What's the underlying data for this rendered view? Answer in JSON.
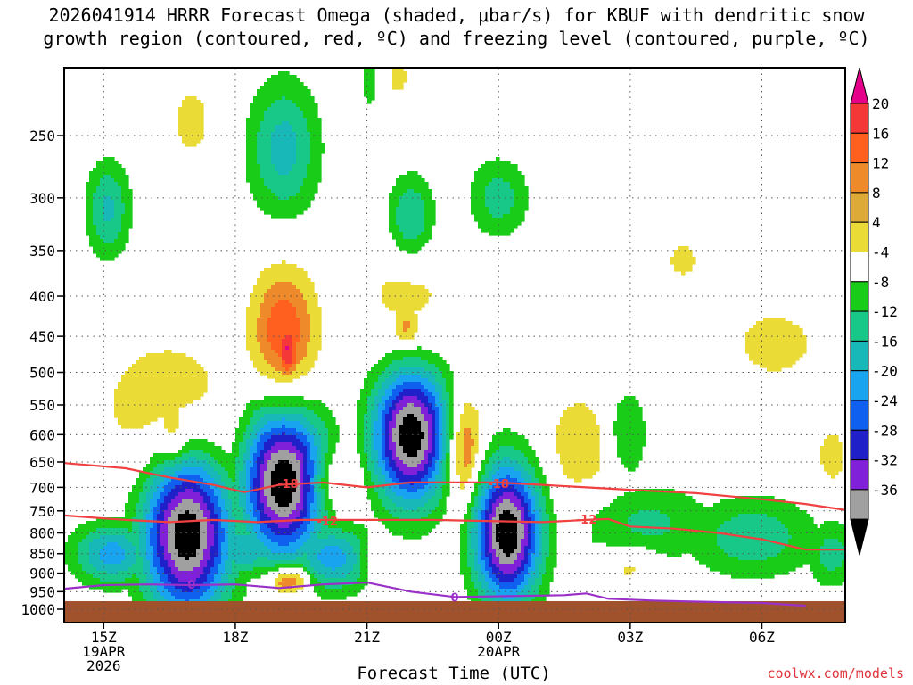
{
  "title_line1": "2026041914 HRRR Forecast Omega (shaded, μbar/s) for KBUF with dendritic snow",
  "title_line2": "growth region (contoured, red, ºC) and freezing level (contoured, purple, ºC)",
  "credit": "coolwx.com/models",
  "chart_data": {
    "type": "heatmap",
    "title": "2026041914 HRRR Forecast Omega (shaded, μbar/s) for KBUF with dendritic snow growth region (contoured, red, ºC) and freezing level (contoured, purple, ºC)",
    "xlabel": "Forecast Time (UTC)",
    "ylabel": "",
    "y_scale": "log-pressure (hPa), inverted",
    "y_ticks": [
      250,
      300,
      350,
      400,
      450,
      500,
      550,
      600,
      650,
      700,
      750,
      800,
      850,
      900,
      950,
      1000
    ],
    "x_ticks": [
      {
        "hour": 15,
        "label": "15Z",
        "sub1": "19APR",
        "sub2": "2026"
      },
      {
        "hour": 18,
        "label": "18Z",
        "sub1": "",
        "sub2": ""
      },
      {
        "hour": 21,
        "label": "21Z",
        "sub1": "",
        "sub2": ""
      },
      {
        "hour": 24,
        "label": "00Z",
        "sub1": "20APR",
        "sub2": ""
      },
      {
        "hour": 27,
        "label": "03Z",
        "sub1": "",
        "sub2": ""
      },
      {
        "hour": 30,
        "label": "06Z",
        "sub1": "",
        "sub2": ""
      }
    ],
    "xlim": [
      14.1,
      31.9
    ],
    "ylim": [
      1040,
      205
    ],
    "grid": true,
    "colorbar": {
      "labels": [
        20,
        16,
        12,
        8,
        4,
        -4,
        -8,
        -12,
        -16,
        -20,
        -24,
        -28,
        -32,
        -36
      ],
      "colors": [
        "#e5008a",
        "#f43838",
        "#ff6020",
        "#ee8a2a",
        "#ddaa38",
        "#eadb36",
        "#ffffff",
        "#18cc18",
        "#18c888",
        "#18b8b8",
        "#18a4ee",
        "#1060f0",
        "#2020c8",
        "#8020d8",
        "#a0a0a0",
        "#000000"
      ]
    },
    "omega_features": [
      {
        "hour": 16.9,
        "p": 800,
        "dt": 1.0,
        "dp": 0.24,
        "value": -40
      },
      {
        "hour": 19.1,
        "p": 690,
        "dt": 0.95,
        "dp": 0.22,
        "value": -40
      },
      {
        "hour": 22.0,
        "p": 600,
        "dt": 0.85,
        "dp": 0.2,
        "value": -40
      },
      {
        "hour": 24.2,
        "p": 800,
        "dt": 0.75,
        "dp": 0.2,
        "value": -40
      },
      {
        "hour": 15.2,
        "p": 850,
        "dt": 0.9,
        "dp": 0.09,
        "value": -18
      },
      {
        "hour": 20.2,
        "p": 860,
        "dt": 0.9,
        "dp": 0.1,
        "value": -18
      },
      {
        "hour": 18.2,
        "p": 840,
        "dt": 0.7,
        "dp": 0.08,
        "value": -16
      },
      {
        "hour": 27.4,
        "p": 780,
        "dt": 1.6,
        "dp": 0.12,
        "value": -9
      },
      {
        "hour": 29.8,
        "p": 810,
        "dt": 1.5,
        "dp": 0.12,
        "value": -11
      },
      {
        "hour": 31.6,
        "p": 850,
        "dt": 0.6,
        "dp": 0.1,
        "value": -10
      },
      {
        "hour": 26.9,
        "p": 600,
        "dt": 0.5,
        "dp": 0.14,
        "value": -9
      },
      {
        "hour": 15.1,
        "p": 310,
        "dt": 0.5,
        "dp": 0.14,
        "value": -13
      },
      {
        "hour": 19.1,
        "p": 260,
        "dt": 0.8,
        "dp": 0.2,
        "value": -14
      },
      {
        "hour": 21.1,
        "p": 210,
        "dt": 0.3,
        "dp": 0.12,
        "value": -8
      },
      {
        "hour": 22.0,
        "p": 320,
        "dt": 0.55,
        "dp": 0.13,
        "value": -14
      },
      {
        "hour": 24.0,
        "p": 300,
        "dt": 0.7,
        "dp": 0.12,
        "value": -10
      },
      {
        "hour": 16.5,
        "p": 560,
        "dt": 1.6,
        "dp": 0.22,
        "value": 8
      },
      {
        "hour": 16.6,
        "p": 600,
        "dt": 0.5,
        "dp": 0.12,
        "value": 12
      },
      {
        "hour": 19.1,
        "p": 450,
        "dt": 0.75,
        "dp": 0.2,
        "value": 16
      },
      {
        "hour": 19.2,
        "p": 470,
        "dt": 0.3,
        "dp": 0.1,
        "value": 22
      },
      {
        "hour": 19.2,
        "p": 920,
        "dt": 0.45,
        "dp": 0.04,
        "value": 18
      },
      {
        "hour": 21.9,
        "p": 400,
        "dt": 1.0,
        "dp": 0.22,
        "value": 6
      },
      {
        "hour": 21.9,
        "p": 440,
        "dt": 0.35,
        "dp": 0.07,
        "value": 12
      },
      {
        "hour": 23.2,
        "p": 620,
        "dt": 0.4,
        "dp": 0.16,
        "value": 14
      },
      {
        "hour": 25.9,
        "p": 620,
        "dt": 0.8,
        "dp": 0.15,
        "value": 8
      },
      {
        "hour": 20.2,
        "p": 690,
        "dt": 0.55,
        "dp": 0.09,
        "value": 10
      },
      {
        "hour": 17.0,
        "p": 240,
        "dt": 0.5,
        "dp": 0.12,
        "value": 6
      },
      {
        "hour": 21.6,
        "p": 210,
        "dt": 0.6,
        "dp": 0.1,
        "value": 5
      },
      {
        "hour": 28.2,
        "p": 360,
        "dt": 0.55,
        "dp": 0.08,
        "value": 5
      },
      {
        "hour": 30.3,
        "p": 460,
        "dt": 1.1,
        "dp": 0.12,
        "value": 6
      },
      {
        "hour": 31.6,
        "p": 640,
        "dt": 0.4,
        "dp": 0.1,
        "value": 6
      },
      {
        "hour": 27.0,
        "p": 880,
        "dt": 0.6,
        "dp": 0.06,
        "value": 7
      },
      {
        "hour": 21.1,
        "p": 860,
        "dt": 0.25,
        "dp": 0.05,
        "value": 6
      }
    ],
    "contours": [
      {
        "name": "-18",
        "color": "#f04040",
        "label_at": [
          [
            19.2,
            692
          ],
          [
            24.0,
            692
          ]
        ],
        "points": [
          [
            14.1,
            652
          ],
          [
            15.5,
            662
          ],
          [
            16.5,
            680
          ],
          [
            17.5,
            695
          ],
          [
            18.2,
            710
          ],
          [
            19.0,
            695
          ],
          [
            20.0,
            690
          ],
          [
            21.0,
            700
          ],
          [
            22.0,
            690
          ],
          [
            23.0,
            690
          ],
          [
            24.0,
            690
          ],
          [
            25.0,
            695
          ],
          [
            26.0,
            700
          ],
          [
            27.0,
            705
          ],
          [
            28.5,
            712
          ],
          [
            30.0,
            725
          ],
          [
            31.0,
            735
          ],
          [
            31.9,
            748
          ]
        ]
      },
      {
        "name": "-12",
        "color": "#f04040",
        "label_at": [
          [
            20.1,
            772
          ],
          [
            26.0,
            768
          ]
        ],
        "points": [
          [
            14.1,
            760
          ],
          [
            15.5,
            770
          ],
          [
            16.5,
            775
          ],
          [
            17.5,
            770
          ],
          [
            18.5,
            775
          ],
          [
            19.5,
            770
          ],
          [
            21.0,
            770
          ],
          [
            22.5,
            770
          ],
          [
            24.0,
            773
          ],
          [
            25.0,
            775
          ],
          [
            26.0,
            770
          ],
          [
            26.5,
            768
          ],
          [
            27.0,
            785
          ],
          [
            28.0,
            790
          ],
          [
            29.0,
            800
          ],
          [
            30.0,
            815
          ],
          [
            31.0,
            840
          ],
          [
            31.9,
            840
          ]
        ]
      },
      {
        "name": "0",
        "color": "#9a30c8",
        "label_at": [
          [
            17.0,
            930
          ],
          [
            23.0,
            965
          ]
        ],
        "points": [
          [
            14.1,
            942
          ],
          [
            15.0,
            932
          ],
          [
            16.0,
            930
          ],
          [
            17.0,
            932
          ],
          [
            18.0,
            930
          ],
          [
            19.0,
            940
          ],
          [
            20.0,
            930
          ],
          [
            21.0,
            925
          ],
          [
            22.0,
            950
          ],
          [
            23.0,
            965
          ],
          [
            24.5,
            962
          ],
          [
            25.5,
            960
          ],
          [
            26.0,
            955
          ],
          [
            26.5,
            970
          ],
          [
            27.5,
            975
          ],
          [
            28.5,
            978
          ],
          [
            30.0,
            982
          ],
          [
            31.0,
            990
          ]
        ]
      }
    ]
  }
}
